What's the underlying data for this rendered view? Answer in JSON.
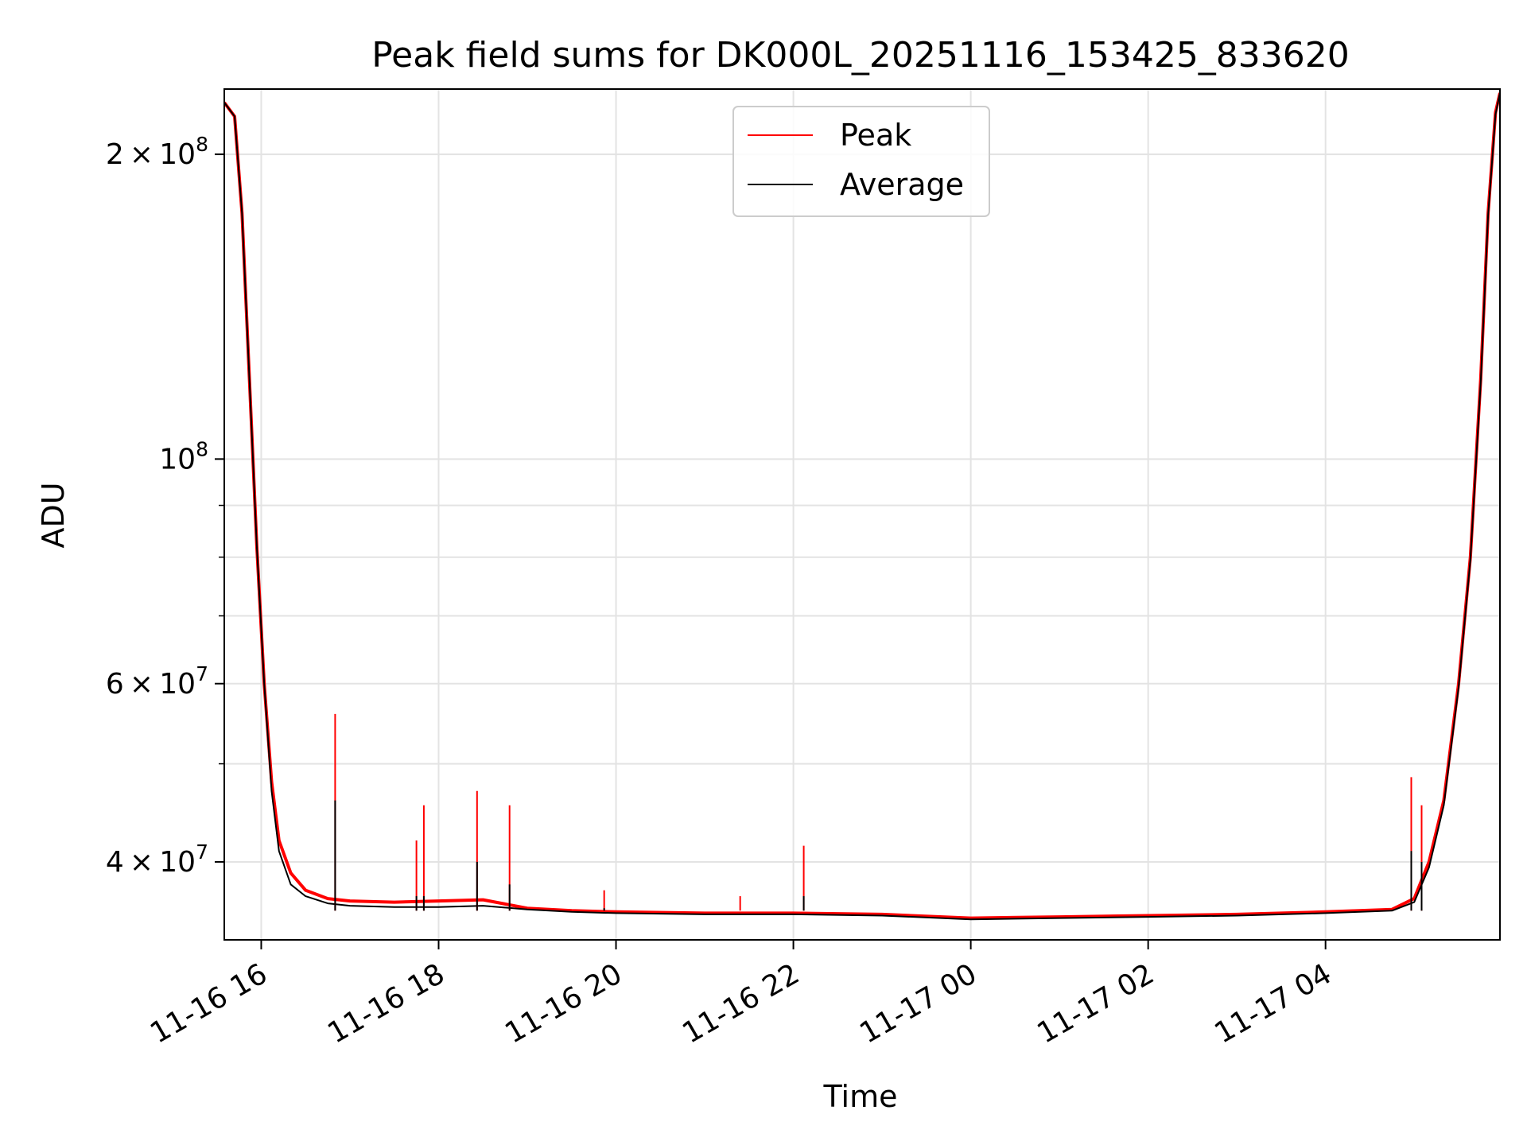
{
  "chart_data": {
    "type": "line",
    "title": "Peak field sums for DK000L_20251116_153425_833620",
    "xlabel": "Time",
    "ylabel": "ADU",
    "yscale": "log",
    "ylim": [
      33500000,
      232000000
    ],
    "xlim": [
      "2025-11-16 15:35",
      "2025-11-17 05:58"
    ],
    "x_tick_labels": [
      "11-16 16",
      "11-16 18",
      "11-16 20",
      "11-16 22",
      "11-17 00",
      "11-17 02",
      "11-17 04"
    ],
    "x_tick_values": [
      "2025-11-16 16:00",
      "2025-11-16 18:00",
      "2025-11-16 20:00",
      "2025-11-16 22:00",
      "2025-11-17 00:00",
      "2025-11-17 02:00",
      "2025-11-17 04:00"
    ],
    "y_major_ticks": [
      {
        "value": 40000000,
        "mantissa": "4",
        "exponent": "7"
      },
      {
        "value": 60000000,
        "mantissa": "6",
        "exponent": "7"
      },
      {
        "value": 100000000,
        "mantissa": "",
        "exponent": "8"
      },
      {
        "value": 200000000,
        "mantissa": "2",
        "exponent": "8"
      }
    ],
    "y_minor_ticks": [
      50000000,
      70000000,
      80000000,
      90000000
    ],
    "grid": true,
    "legend_position": "top-center",
    "series": [
      {
        "name": "Peak",
        "color": "#ff0000",
        "x": [
          "2025-11-16 15:35",
          "2025-11-16 15:42",
          "2025-11-16 15:47",
          "2025-11-16 15:52",
          "2025-11-16 15:57",
          "2025-11-16 16:02",
          "2025-11-16 16:07",
          "2025-11-16 16:12",
          "2025-11-16 16:20",
          "2025-11-16 16:30",
          "2025-11-16 16:45",
          "2025-11-16 17:00",
          "2025-11-16 17:30",
          "2025-11-16 18:00",
          "2025-11-16 18:30",
          "2025-11-16 19:00",
          "2025-11-16 19:30",
          "2025-11-16 20:00",
          "2025-11-16 21:00",
          "2025-11-16 22:00",
          "2025-11-16 23:00",
          "2025-11-17 00:00",
          "2025-11-17 01:00",
          "2025-11-17 02:00",
          "2025-11-17 03:00",
          "2025-11-17 04:00",
          "2025-11-17 04:45",
          "2025-11-17 05:00",
          "2025-11-17 05:10",
          "2025-11-17 05:20",
          "2025-11-17 05:30",
          "2025-11-17 05:38",
          "2025-11-17 05:45",
          "2025-11-17 05:50",
          "2025-11-17 05:55",
          "2025-11-17 05:58"
        ],
        "y": [
          225000000,
          218000000,
          175000000,
          120000000,
          82000000,
          60000000,
          48000000,
          42000000,
          39000000,
          37500000,
          36800000,
          36600000,
          36500000,
          36600000,
          36700000,
          36000000,
          35800000,
          35700000,
          35600000,
          35600000,
          35500000,
          35200000,
          35300000,
          35400000,
          35500000,
          35700000,
          35900000,
          36800000,
          40000000,
          46000000,
          60000000,
          80000000,
          120000000,
          175000000,
          220000000,
          230000000
        ]
      },
      {
        "name": "Average",
        "color": "#000000",
        "x": [
          "2025-11-16 15:35",
          "2025-11-16 15:42",
          "2025-11-16 15:47",
          "2025-11-16 15:52",
          "2025-11-16 15:57",
          "2025-11-16 16:02",
          "2025-11-16 16:07",
          "2025-11-16 16:12",
          "2025-11-16 16:20",
          "2025-11-16 16:30",
          "2025-11-16 16:45",
          "2025-11-16 17:00",
          "2025-11-16 17:30",
          "2025-11-16 18:00",
          "2025-11-16 18:30",
          "2025-11-16 19:00",
          "2025-11-16 19:30",
          "2025-11-16 20:00",
          "2025-11-16 21:00",
          "2025-11-16 22:00",
          "2025-11-16 23:00",
          "2025-11-17 00:00",
          "2025-11-17 01:00",
          "2025-11-17 02:00",
          "2025-11-17 03:00",
          "2025-11-17 04:00",
          "2025-11-17 04:45",
          "2025-11-17 05:00",
          "2025-11-17 05:10",
          "2025-11-17 05:20",
          "2025-11-17 05:30",
          "2025-11-17 05:38",
          "2025-11-17 05:45",
          "2025-11-17 05:50",
          "2025-11-17 05:55",
          "2025-11-17 05:58"
        ],
        "y": [
          225000000,
          218000000,
          175000000,
          120000000,
          82000000,
          60000000,
          47000000,
          41000000,
          38000000,
          37000000,
          36400000,
          36200000,
          36100000,
          36100000,
          36200000,
          35900000,
          35700000,
          35600000,
          35500000,
          35500000,
          35400000,
          35100000,
          35200000,
          35300000,
          35400000,
          35600000,
          35800000,
          36500000,
          39500000,
          45500000,
          59500000,
          79500000,
          119000000,
          174000000,
          219000000,
          230000000
        ]
      }
    ],
    "spikes": [
      {
        "x": "2025-11-16 16:50",
        "peak": 56000000,
        "average": 46000000
      },
      {
        "x": "2025-11-16 17:45",
        "peak": 42000000,
        "average": 37000000
      },
      {
        "x": "2025-11-16 17:50",
        "peak": 45500000,
        "average": 37000000
      },
      {
        "x": "2025-11-16 18:26",
        "peak": 47000000,
        "average": 40000000
      },
      {
        "x": "2025-11-16 18:48",
        "peak": 45500000,
        "average": 38000000
      },
      {
        "x": "2025-11-16 19:52",
        "peak": 37500000,
        "average": 36000000
      },
      {
        "x": "2025-11-16 21:24",
        "peak": 37000000,
        "average": 35800000
      },
      {
        "x": "2025-11-16 22:07",
        "peak": 41500000,
        "average": 37000000
      },
      {
        "x": "2025-11-17 04:58",
        "peak": 48500000,
        "average": 41000000
      },
      {
        "x": "2025-11-17 05:05",
        "peak": 45500000,
        "average": 40000000
      }
    ]
  }
}
